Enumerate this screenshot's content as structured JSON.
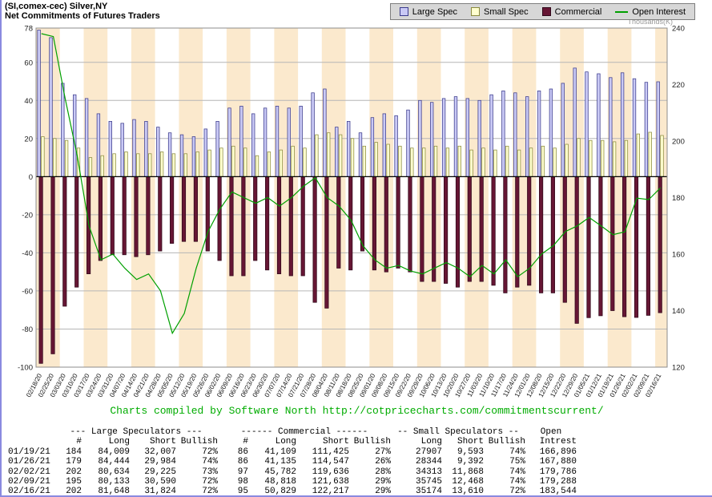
{
  "header": {
    "title_line1": "(SI,comex-cec) Silver,NY",
    "title_line2": "Net Commitments of Futures Traders"
  },
  "legend": [
    {
      "label": "Large Spec",
      "type": "box",
      "color": "#c9c9f5",
      "border": "#3b3b8c"
    },
    {
      "label": "Small Spec",
      "type": "box",
      "color": "#ffffcf",
      "border": "#8a8a3d"
    },
    {
      "label": "Commercial",
      "type": "box",
      "color": "#661634",
      "border": "#30081a"
    },
    {
      "label": "Open Interest",
      "type": "line",
      "color": "#00a000",
      "border": "#00a000"
    }
  ],
  "chart_data": {
    "type": "bar",
    "title": "Net Commitments of Futures Traders",
    "categories": [
      "02/18/20",
      "02/25/20",
      "03/03/20",
      "03/10/20",
      "03/17/20",
      "03/24/20",
      "03/31/20",
      "04/07/20",
      "04/14/20",
      "04/21/20",
      "04/28/20",
      "05/05/20",
      "05/12/20",
      "05/19/20",
      "05/26/20",
      "06/02/20",
      "06/09/20",
      "06/16/20",
      "06/23/20",
      "06/30/20",
      "07/07/20",
      "07/14/20",
      "07/21/20",
      "07/28/20",
      "08/04/20",
      "08/11/20",
      "08/18/20",
      "08/25/20",
      "09/01/20",
      "09/08/20",
      "09/15/20",
      "09/22/20",
      "09/29/20",
      "10/06/20",
      "10/13/20",
      "10/20/20",
      "10/27/20",
      "11/03/20",
      "11/10/20",
      "11/17/20",
      "11/24/20",
      "12/01/20",
      "12/08/20",
      "12/15/20",
      "12/22/20",
      "12/29/20",
      "01/05/21",
      "01/12/21",
      "01/19/21",
      "01/26/21",
      "02/02/21",
      "02/09/21",
      "02/16/21"
    ],
    "series": [
      {
        "name": "Large Spec",
        "kind": "bar",
        "axis": "left",
        "color": "#c9c9f5",
        "border": "#3b3b8c",
        "values": [
          77,
          73,
          49,
          43,
          41,
          33,
          29,
          28,
          30,
          29,
          26,
          23,
          22,
          21,
          25,
          29,
          36,
          37,
          33,
          36,
          37,
          36,
          37,
          44,
          46,
          26,
          29,
          23,
          31,
          33,
          32,
          35,
          40,
          39,
          41,
          42,
          41,
          40,
          43,
          45,
          44,
          42,
          45,
          46,
          49,
          57,
          55,
          54,
          52,
          54.5,
          51.4,
          49.5,
          49.8
        ]
      },
      {
        "name": "Small Spec",
        "kind": "bar",
        "axis": "left",
        "color": "#ffffcf",
        "border": "#8a8a3d",
        "values": [
          21,
          20,
          19,
          15,
          10,
          11,
          12,
          13,
          12,
          12,
          13,
          12,
          12,
          13,
          14,
          15,
          16,
          15,
          11,
          13,
          14,
          16,
          15,
          22,
          23,
          22,
          20,
          16,
          18,
          17,
          16,
          15,
          15,
          16,
          15,
          16,
          14,
          15,
          14,
          16,
          14,
          15,
          16,
          15,
          17,
          20,
          19,
          19,
          18.3,
          19,
          22.4,
          23.3,
          21.6
        ]
      },
      {
        "name": "Commercial",
        "kind": "bar",
        "axis": "left",
        "color": "#661634",
        "border": "#30081a",
        "values": [
          -98,
          -93,
          -68,
          -58,
          -51,
          -44,
          -41,
          -41,
          -42,
          -41,
          -39,
          -35,
          -34,
          -34,
          -39,
          -44,
          -52,
          -52,
          -44,
          -49,
          -51,
          -52,
          -52,
          -66,
          -69,
          -48,
          -49,
          -39,
          -49,
          -50,
          -48,
          -50,
          -55,
          -55,
          -56,
          -58,
          -55,
          -55,
          -57,
          -61,
          -58,
          -57,
          -61,
          -61,
          -66,
          -77,
          -74,
          -73,
          -70.3,
          -73.5,
          -73.9,
          -72.8,
          -71.4
        ]
      },
      {
        "name": "Open Interest",
        "kind": "line",
        "axis": "right",
        "color": "#00a000",
        "values": [
          238,
          237,
          215,
          195,
          170,
          158,
          160,
          155,
          151,
          153,
          147,
          132,
          139,
          155,
          168,
          176,
          182,
          180,
          178,
          180,
          177,
          180,
          184,
          187,
          180,
          177,
          172,
          163,
          158,
          155,
          156,
          154,
          153,
          155,
          157,
          155,
          152,
          156,
          153,
          158,
          152,
          155,
          160,
          163,
          168,
          170,
          173,
          170,
          166.9,
          167.9,
          179.8,
          179.3,
          183.5
        ]
      }
    ],
    "left_axis": {
      "ticks": [
        78,
        60,
        40,
        20,
        0,
        -20,
        -40,
        -60,
        -80,
        -100
      ],
      "min": -100,
      "max": 78
    },
    "right_axis": {
      "ticks": [
        240,
        220,
        200,
        180,
        160,
        140,
        120
      ],
      "min": 120,
      "max": 240,
      "label": "Thousands(K)"
    },
    "grid": true,
    "legend_position": "top-right",
    "background_stripe_color": "#fbe9cd"
  },
  "footer": {
    "credit": "Charts compiled by Software North  http://cotpricecharts.com/commitmentscurrent/"
  },
  "table": {
    "group_headers": [
      {
        "label": "--- Large Speculators ---",
        "span": 4
      },
      {
        "label": "------ Commercial ------",
        "span": 4
      },
      {
        "label": "-- Small Speculators --",
        "span": 3
      },
      {
        "label": "Open",
        "span": 1
      }
    ],
    "columns": [
      "",
      "#",
      "Long",
      "Short",
      "Bullish",
      "#",
      "Long",
      "Short",
      "Bullish",
      "Long",
      "Short",
      "Bullish",
      "Intrest"
    ],
    "rows": [
      [
        "01/19/21",
        "184",
        "84,009",
        "32,007",
        "72%",
        "86",
        "41,109",
        "111,425",
        "27%",
        "27907",
        "9,593",
        "74%",
        "166,896"
      ],
      [
        "01/26/21",
        "179",
        "84,444",
        "29,984",
        "74%",
        "86",
        "41,135",
        "114,547",
        "26%",
        "28344",
        "9,392",
        "75%",
        "167,880"
      ],
      [
        "02/02/21",
        "202",
        "80,634",
        "29,225",
        "73%",
        "97",
        "45,782",
        "119,636",
        "28%",
        "34313",
        "11,868",
        "74%",
        "179,786"
      ],
      [
        "02/09/21",
        "195",
        "80,133",
        "30,590",
        "72%",
        "98",
        "48,818",
        "121,638",
        "29%",
        "35745",
        "12,468",
        "74%",
        "179,288"
      ],
      [
        "02/16/21",
        "202",
        "81,648",
        "31,824",
        "72%",
        "95",
        "50,829",
        "122,217",
        "29%",
        "35174",
        "13,610",
        "72%",
        "183,544"
      ]
    ]
  }
}
